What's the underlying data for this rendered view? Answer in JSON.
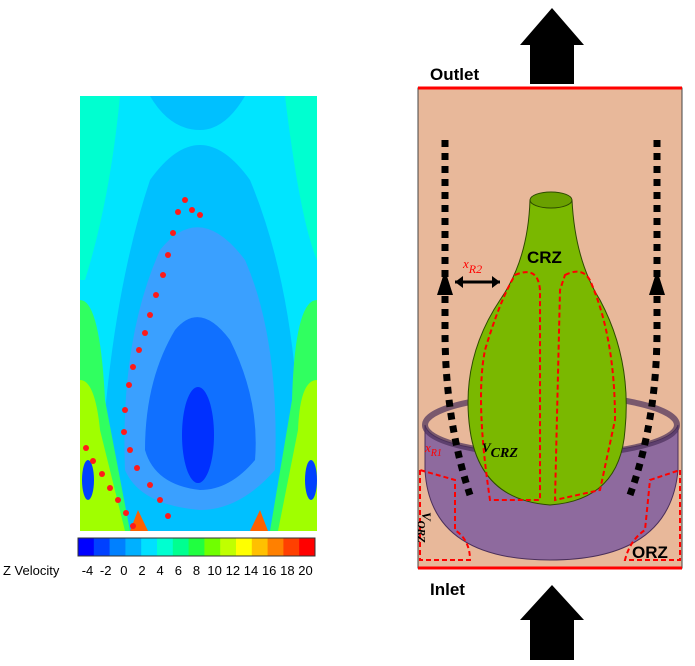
{
  "colorbar": {
    "label": "Z Velocity",
    "ticks": [
      -4,
      -2,
      0,
      2,
      4,
      6,
      8,
      10,
      12,
      14,
      16,
      18,
      20
    ],
    "colors": [
      "#0000ff",
      "#0040ff",
      "#0080ff",
      "#00b0ff",
      "#00e0ff",
      "#00ffd0",
      "#00ff90",
      "#20ff40",
      "#70ff00",
      "#c0ff00",
      "#ffff00",
      "#ffc000",
      "#ff8000",
      "#ff4000",
      "#ff0000"
    ]
  },
  "schematic": {
    "outlet": "Outlet",
    "inlet": "Inlet",
    "crz": "CRZ",
    "orz": "ORZ",
    "x_r2": {
      "symbol": "x",
      "subscript": "R2"
    },
    "x_r1": {
      "symbol": "x",
      "subscript": "R1"
    },
    "v_crz": {
      "symbol": "V",
      "subscript": "CRZ"
    },
    "v_orz": {
      "symbol": "V",
      "subscript": "ORZ"
    }
  }
}
